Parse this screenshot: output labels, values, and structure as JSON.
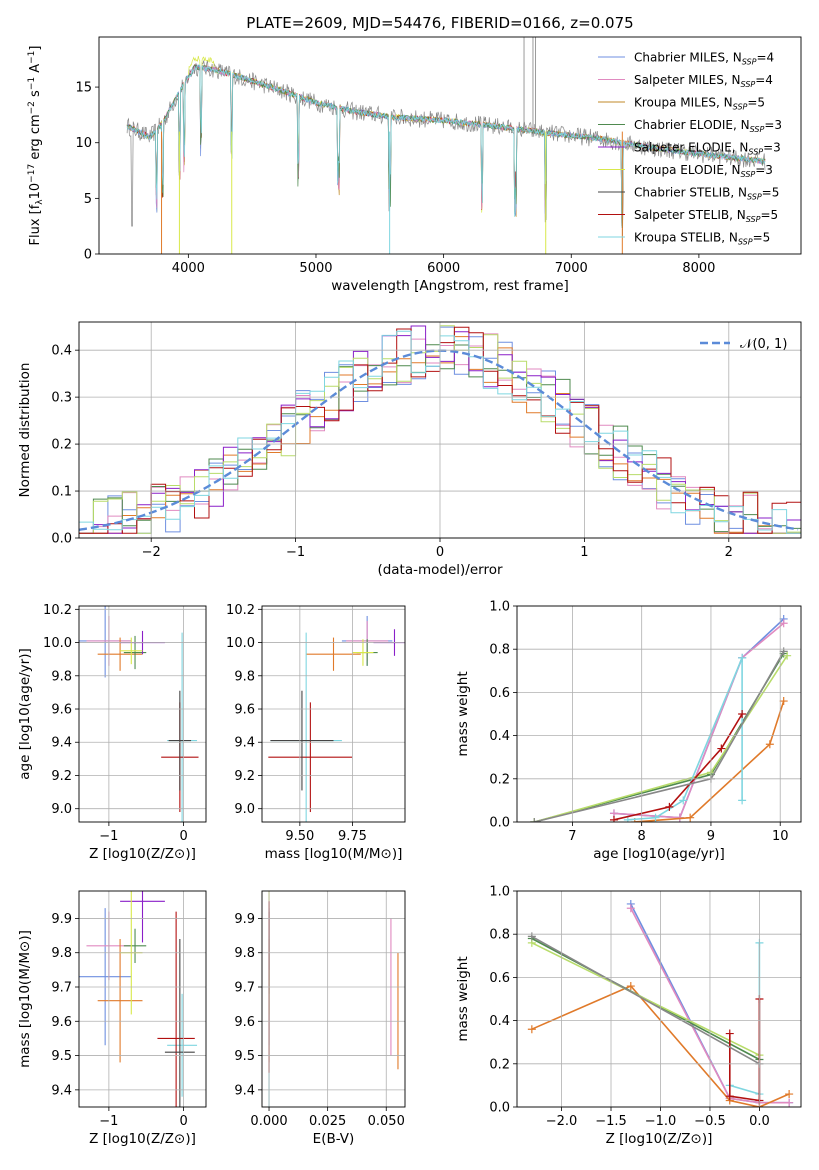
{
  "figure_title": "PLATE=2609, MJD=54476, FIBERID=0166, z=0.075",
  "series_colors": {
    "Chabrier MILES": "#6f8fe0",
    "Salpeter MILES": "#e08ac0",
    "Kroupa MILES": "#c08a2a",
    "Chabrier ELODIE": "#4f8a4f",
    "Salpeter ELODIE": "#8a1fc8",
    "Kroupa ELODIE": "#d8e84a",
    "Chabrier STELIB": "#444444",
    "Salpeter STELIB": "#b21010",
    "Kroupa STELIB": "#7fd6e0",
    "orange": "#e07a2a",
    "lightgreen": "#b8dc6a",
    "gray": "#888888"
  },
  "chart_data": [
    {
      "id": "spectrum",
      "type": "line",
      "title": "",
      "xlabel": "wavelength [Angstrom, rest frame]",
      "ylabel": "Flux [f_λ 10^-17 erg cm^-2 s^-1 A^-1]",
      "xlim": [
        3300,
        8800
      ],
      "ylim": [
        0,
        19.5
      ],
      "xticks": [
        4000,
        5000,
        6000,
        7000,
        8000
      ],
      "yticks": [
        0,
        5,
        10,
        15
      ],
      "legend": "top-right",
      "legend_entries": [
        {
          "name": "Chabrier MILES",
          "nssp": "4"
        },
        {
          "name": "Salpeter MILES",
          "nssp": "4"
        },
        {
          "name": "Kroupa MILES",
          "nssp": "5"
        },
        {
          "name": "Chabrier ELODIE",
          "nssp": "3"
        },
        {
          "name": "Salpeter ELODIE",
          "nssp": "3"
        },
        {
          "name": "Kroupa ELODIE",
          "nssp": "3"
        },
        {
          "name": "Chabrier STELIB",
          "nssp": "5"
        },
        {
          "name": "Salpeter STELIB",
          "nssp": "5"
        },
        {
          "name": "Kroupa STELIB",
          "nssp": "5"
        }
      ],
      "continuum": {
        "x": [
          3520,
          3700,
          3800,
          3950,
          4050,
          4200,
          4400,
          4700,
          5000,
          5300,
          5600,
          6000,
          6400,
          6800,
          7200,
          7600,
          8000,
          8400,
          8520
        ],
        "y": [
          11.5,
          10.5,
          11.8,
          15.0,
          16.8,
          16.6,
          15.9,
          14.8,
          13.6,
          12.8,
          12.3,
          12.0,
          11.5,
          10.9,
          10.4,
          9.6,
          9.0,
          8.5,
          8.3
        ]
      },
      "absorption_features": [
        3750,
        3800,
        3930,
        3968,
        4100,
        4340,
        4861,
        5175,
        5577,
        6300,
        6563,
        6800,
        7400
      ]
    },
    {
      "id": "residuals",
      "type": "line",
      "title": "",
      "xlabel": "(data-model)/error",
      "ylabel": "Normed distribution",
      "xlim": [
        -2.5,
        2.5
      ],
      "ylim": [
        0,
        0.46
      ],
      "xticks": [
        -2,
        -1,
        0,
        1,
        2
      ],
      "yticks": [
        0.0,
        0.1,
        0.2,
        0.3,
        0.4
      ],
      "grid": true,
      "legend": "top-right",
      "legend_label": "𝒩(0, 1)",
      "gaussian": {
        "mean": 0,
        "sigma": 1
      },
      "bin_width": 0.1,
      "bin_start": -2.5
    },
    {
      "id": "age-vs-Z",
      "type": "scatter",
      "title": "",
      "xlabel": "Z [log10(Z/Z⊙)]",
      "ylabel": "age [log10(age/yr)]",
      "xlim": [
        -1.4,
        0.3
      ],
      "ylim": [
        8.92,
        10.22
      ],
      "xticks": [
        -1,
        0
      ],
      "yticks": [
        9.0,
        9.2,
        9.4,
        9.6,
        9.8,
        10.0,
        10.2
      ],
      "grid": true,
      "points": [
        {
          "x": -1.05,
          "y": 10.01,
          "xerr": 0.35,
          "yerr": 0.22,
          "color": "#6f8fe0"
        },
        {
          "x": -1.0,
          "y": 10.01,
          "xerr": 0.3,
          "yerr": 0.15,
          "color": "#e08ac0"
        },
        {
          "x": -0.85,
          "y": 9.93,
          "xerr": 0.3,
          "yerr": 0.1,
          "color": "#e07a2a"
        },
        {
          "x": -0.65,
          "y": 9.94,
          "xerr": 0.15,
          "yerr": 0.1,
          "color": "#4f8a4f"
        },
        {
          "x": -0.55,
          "y": 10.0,
          "xerr": 0.3,
          "yerr": 0.07,
          "color": "#8a1fc8"
        },
        {
          "x": -0.7,
          "y": 9.95,
          "xerr": 0.15,
          "yerr": 0.08,
          "color": "#d8e84a"
        },
        {
          "x": -0.02,
          "y": 9.41,
          "xerr": 0.2,
          "yerr": 0.65,
          "color": "#7fd6e0"
        },
        {
          "x": -0.05,
          "y": 9.31,
          "xerr": 0.25,
          "yerr": 0.33,
          "color": "#b21010"
        },
        {
          "x": -0.05,
          "y": 9.41,
          "xerr": 0.15,
          "yerr": 0.3,
          "color": "#444444"
        }
      ]
    },
    {
      "id": "age-vs-mass",
      "type": "scatter",
      "title": "",
      "xlabel": "mass [log10(M/M⊙)]",
      "ylabel": "",
      "xlim": [
        9.32,
        10.0
      ],
      "ylim": [
        8.92,
        10.22
      ],
      "xticks": [
        9.5,
        9.75
      ],
      "xtick_labels": [
        "9.50",
        "9.75"
      ],
      "yticks": [
        9.0,
        9.2,
        9.4,
        9.6,
        9.8,
        10.0,
        10.2
      ],
      "grid": true,
      "points": [
        {
          "x": 9.82,
          "y": 10.01,
          "xerr": 0.12,
          "yerr": 0.15,
          "color": "#6f8fe0"
        },
        {
          "x": 9.82,
          "y": 10.01,
          "xerr": 0.1,
          "yerr": 0.12,
          "color": "#e08ac0"
        },
        {
          "x": 9.66,
          "y": 9.93,
          "xerr": 0.13,
          "yerr": 0.1,
          "color": "#e07a2a"
        },
        {
          "x": 9.82,
          "y": 9.94,
          "xerr": 0.05,
          "yerr": 0.08,
          "color": "#4f8a4f"
        },
        {
          "x": 9.95,
          "y": 10.0,
          "xerr": 0.1,
          "yerr": 0.08,
          "color": "#8a1fc8"
        },
        {
          "x": 9.8,
          "y": 9.94,
          "xerr": 0.05,
          "yerr": 0.08,
          "color": "#d8e84a"
        },
        {
          "x": 9.53,
          "y": 9.41,
          "xerr": 0.17,
          "yerr": 0.65,
          "color": "#7fd6e0"
        },
        {
          "x": 9.55,
          "y": 9.31,
          "xerr": 0.2,
          "yerr": 0.33,
          "color": "#b21010"
        },
        {
          "x": 9.51,
          "y": 9.41,
          "xerr": 0.15,
          "yerr": 0.3,
          "color": "#444444"
        }
      ]
    },
    {
      "id": "mass-weight-vs-age",
      "type": "line",
      "title": "",
      "xlabel": "age [log10(age/yr)]",
      "ylabel": "mass weight",
      "xlim": [
        6.2,
        10.3
      ],
      "ylim": [
        0,
        1.0
      ],
      "xticks": [
        7,
        8,
        9,
        10
      ],
      "yticks": [
        0.0,
        0.2,
        0.4,
        0.6,
        0.8,
        1.0
      ],
      "grid": true,
      "series": [
        {
          "x": [
            7.6,
            8.55,
            9.45,
            10.05
          ],
          "y": [
            0.04,
            0.02,
            0.76,
            0.94
          ],
          "color": "#6f8fe0"
        },
        {
          "x": [
            7.6,
            8.55,
            9.45,
            10.05
          ],
          "y": [
            0.04,
            0.02,
            0.76,
            0.92
          ],
          "color": "#e08ac0"
        },
        {
          "x": [
            7.9,
            8.7,
            9.85,
            10.05
          ],
          "y": [
            0.0,
            0.02,
            0.36,
            0.56
          ],
          "color": "#e07a2a"
        },
        {
          "x": [
            6.45,
            9.0,
            10.05
          ],
          "y": [
            0.0,
            0.22,
            0.78
          ],
          "color": "#4f8a4f"
        },
        {
          "x": [
            6.45,
            9.0,
            10.1
          ],
          "y": [
            0.0,
            0.23,
            0.77
          ],
          "color": "#b8dc6a"
        },
        {
          "x": [
            7.8,
            8.2,
            8.6,
            9.45,
            9.45
          ],
          "y": [
            0.01,
            0.02,
            0.1,
            0.76,
            0.1
          ],
          "color": "#7fd6e0"
        },
        {
          "x": [
            7.6,
            8.4,
            9.15,
            9.45
          ],
          "y": [
            0.01,
            0.07,
            0.34,
            0.5
          ],
          "color": "#b21010"
        },
        {
          "x": [
            6.45,
            9.0,
            10.05
          ],
          "y": [
            0.0,
            0.2,
            0.79
          ],
          "color": "#888888"
        }
      ]
    },
    {
      "id": "mass-vs-Z",
      "type": "scatter",
      "title": "",
      "xlabel": "Z [log10(Z/Z⊙)]",
      "ylabel": "mass [log10(M/M⊙)]",
      "xlim": [
        -1.4,
        0.3
      ],
      "ylim": [
        9.35,
        9.98
      ],
      "xticks": [
        -1,
        0
      ],
      "yticks": [
        9.4,
        9.5,
        9.6,
        9.7,
        9.8,
        9.9
      ],
      "grid": true,
      "points": [
        {
          "x": -1.05,
          "y": 9.73,
          "xerr": 0.35,
          "yerr": 0.2,
          "color": "#6f8fe0"
        },
        {
          "x": -1.0,
          "y": 9.82,
          "xerr": 0.3,
          "yerr": 0.1,
          "color": "#e08ac0"
        },
        {
          "x": -0.85,
          "y": 9.66,
          "xerr": 0.3,
          "yerr": 0.18,
          "color": "#e07a2a"
        },
        {
          "x": -0.65,
          "y": 9.82,
          "xerr": 0.15,
          "yerr": 0.05,
          "color": "#4f8a4f"
        },
        {
          "x": -0.55,
          "y": 9.95,
          "xerr": 0.3,
          "yerr": 0.12,
          "color": "#8a1fc8"
        },
        {
          "x": -0.7,
          "y": 9.8,
          "xerr": 0.15,
          "yerr": 0.18,
          "color": "#d8e84a"
        },
        {
          "x": -0.02,
          "y": 9.53,
          "xerr": 0.2,
          "yerr": 0.15,
          "color": "#7fd6e0"
        },
        {
          "x": -0.1,
          "y": 9.55,
          "xerr": 0.25,
          "yerr": 0.37,
          "color": "#b21010"
        },
        {
          "x": -0.05,
          "y": 9.51,
          "xerr": 0.2,
          "yerr": 0.33,
          "color": "#444444"
        }
      ]
    },
    {
      "id": "mass-vs-ebv",
      "type": "scatter",
      "title": "",
      "xlabel": "E(B-V)",
      "ylabel": "",
      "xlim": [
        -0.003,
        0.058
      ],
      "ylim": [
        9.35,
        9.98
      ],
      "xticks": [
        0.0,
        0.025,
        0.05
      ],
      "xtick_labels": [
        "0.000",
        "0.025",
        "0.050"
      ],
      "yticks": [
        9.4,
        9.5,
        9.6,
        9.7,
        9.8,
        9.9
      ],
      "grid": true,
      "points": [
        {
          "x": 0.0,
          "y": 9.73,
          "xerr": 0.0,
          "yerr": 0.2,
          "color": "#6f8fe0"
        },
        {
          "x": 0.0,
          "y": 9.82,
          "xerr": 0.0,
          "yerr": 0.1,
          "color": "#e08ac0"
        },
        {
          "x": 0.0,
          "y": 9.66,
          "xerr": 0.0,
          "yerr": 0.18,
          "color": "#e07a2a"
        },
        {
          "x": 0.0,
          "y": 9.8,
          "xerr": 0.0,
          "yerr": 0.12,
          "color": "#4f8a4f"
        },
        {
          "x": 0.0,
          "y": 9.85,
          "xerr": 0.0,
          "yerr": 0.1,
          "color": "#8a1fc8"
        },
        {
          "x": 0.0,
          "y": 9.8,
          "xerr": 0.0,
          "yerr": 0.18,
          "color": "#d8e84a"
        },
        {
          "x": 0.0,
          "y": 9.6,
          "xerr": 0.0,
          "yerr": 0.25,
          "color": "#7fd6e0"
        },
        {
          "x": 0.0,
          "y": 9.7,
          "xerr": 0.0,
          "yerr": 0.25,
          "color": "#b21010"
        },
        {
          "x": 0.052,
          "y": 9.7,
          "xerr": 0.0,
          "yerr": 0.2,
          "color": "#e08ac0"
        },
        {
          "x": 0.055,
          "y": 9.63,
          "xerr": 0.0,
          "yerr": 0.17,
          "color": "#e07a2a"
        }
      ]
    },
    {
      "id": "mass-weight-vs-Z",
      "type": "line",
      "title": "",
      "xlabel": "Z [log10(Z/Z⊙)]",
      "ylabel": "mass weight",
      "xlim": [
        -2.45,
        0.42
      ],
      "ylim": [
        0,
        1.0
      ],
      "xticks": [
        -2.0,
        -1.5,
        -1.0,
        -0.5,
        0.0
      ],
      "xtick_labels": [
        "−2.0",
        "−1.5",
        "−1.0",
        "−0.5",
        "0.0"
      ],
      "yticks": [
        0.0,
        0.2,
        0.4,
        0.6,
        0.8,
        1.0
      ],
      "grid": true,
      "series": [
        {
          "x": [
            -1.3,
            -0.3,
            0.0,
            0.3
          ],
          "y": [
            0.94,
            0.04,
            0.02,
            0.02
          ],
          "color": "#6f8fe0"
        },
        {
          "x": [
            -1.3,
            -0.3,
            0.0,
            0.3
          ],
          "y": [
            0.92,
            0.04,
            0.02,
            0.02
          ],
          "color": "#e08ac0"
        },
        {
          "x": [
            -2.3,
            -1.3,
            -0.3,
            0.0,
            0.3
          ],
          "y": [
            0.36,
            0.56,
            0.03,
            0.0,
            0.06
          ],
          "color": "#e07a2a"
        },
        {
          "x": [
            -2.3,
            0.0
          ],
          "y": [
            0.78,
            0.22
          ],
          "color": "#4f8a4f"
        },
        {
          "x": [
            -2.3,
            0.0
          ],
          "y": [
            0.76,
            0.24
          ],
          "color": "#b8dc6a"
        },
        {
          "x": [
            -0.3,
            0.0,
            0.0
          ],
          "y": [
            0.1,
            0.06,
            0.76
          ],
          "color": "#7fd6e0"
        },
        {
          "x": [
            -0.3,
            -0.3,
            0.0,
            0.0
          ],
          "y": [
            0.34,
            0.05,
            0.03,
            0.5
          ],
          "color": "#b21010"
        },
        {
          "x": [
            -2.3,
            0.0
          ],
          "y": [
            0.79,
            0.2
          ],
          "color": "#888888"
        }
      ]
    }
  ]
}
